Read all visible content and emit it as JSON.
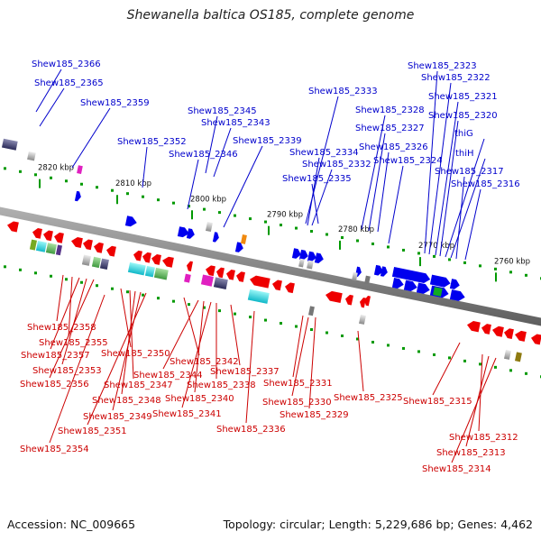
{
  "title": "Shewanella baltica OS185, complete genome",
  "footer": {
    "accession": "Accession: NC_009665",
    "topology": "Topology: circular; Length: 5,229,686 bp; Genes: 4,462"
  },
  "colors": {
    "forward_label": "#0000cc",
    "reverse_label": "#cc0000",
    "forward_gene": "#0000ee",
    "reverse_gene": "#ee0000",
    "backbone": "#888888",
    "tick": "#009900"
  },
  "scale_ticks": [
    "2820 kbp",
    "2810 kbp",
    "2800 kbp",
    "2790 kbp",
    "2780 kbp",
    "2770 kbp",
    "2760 kbp"
  ],
  "forward_labels": [
    "Shew185_2366",
    "Shew185_2365",
    "Shew185_2359",
    "Shew185_2352",
    "Shew185_2345",
    "Shew185_2343",
    "Shew185_2346",
    "Shew185_2339",
    "Shew185_2333",
    "Shew185_2334",
    "Shew185_2332",
    "Shew185_2335",
    "Shew185_2328",
    "Shew185_2327",
    "Shew185_2326",
    "Shew185_2324",
    "Shew185_2323",
    "Shew185_2322",
    "Shew185_2321",
    "Shew185_2320",
    "thiG",
    "thiH",
    "Shew185_2317",
    "Shew185_2316"
  ],
  "reverse_labels": [
    "Shew185_2358",
    "Shew185_2355",
    "Shew185_2357",
    "Shew185_2353",
    "Shew185_2356",
    "Shew185_2350",
    "Shew185_2347",
    "Shew185_2348",
    "Shew185_2349",
    "Shew185_2351",
    "Shew185_2354",
    "Shew185_2342",
    "Shew185_2344",
    "Shew185_2340",
    "Shew185_2341",
    "Shew185_2338",
    "Shew185_2337",
    "Shew185_2336",
    "Shew185_2331",
    "Shew185_2330",
    "Shew185_2329",
    "Shew185_2325",
    "Shew185_2315",
    "Shew185_2312",
    "Shew185_2313",
    "Shew185_2314"
  ]
}
